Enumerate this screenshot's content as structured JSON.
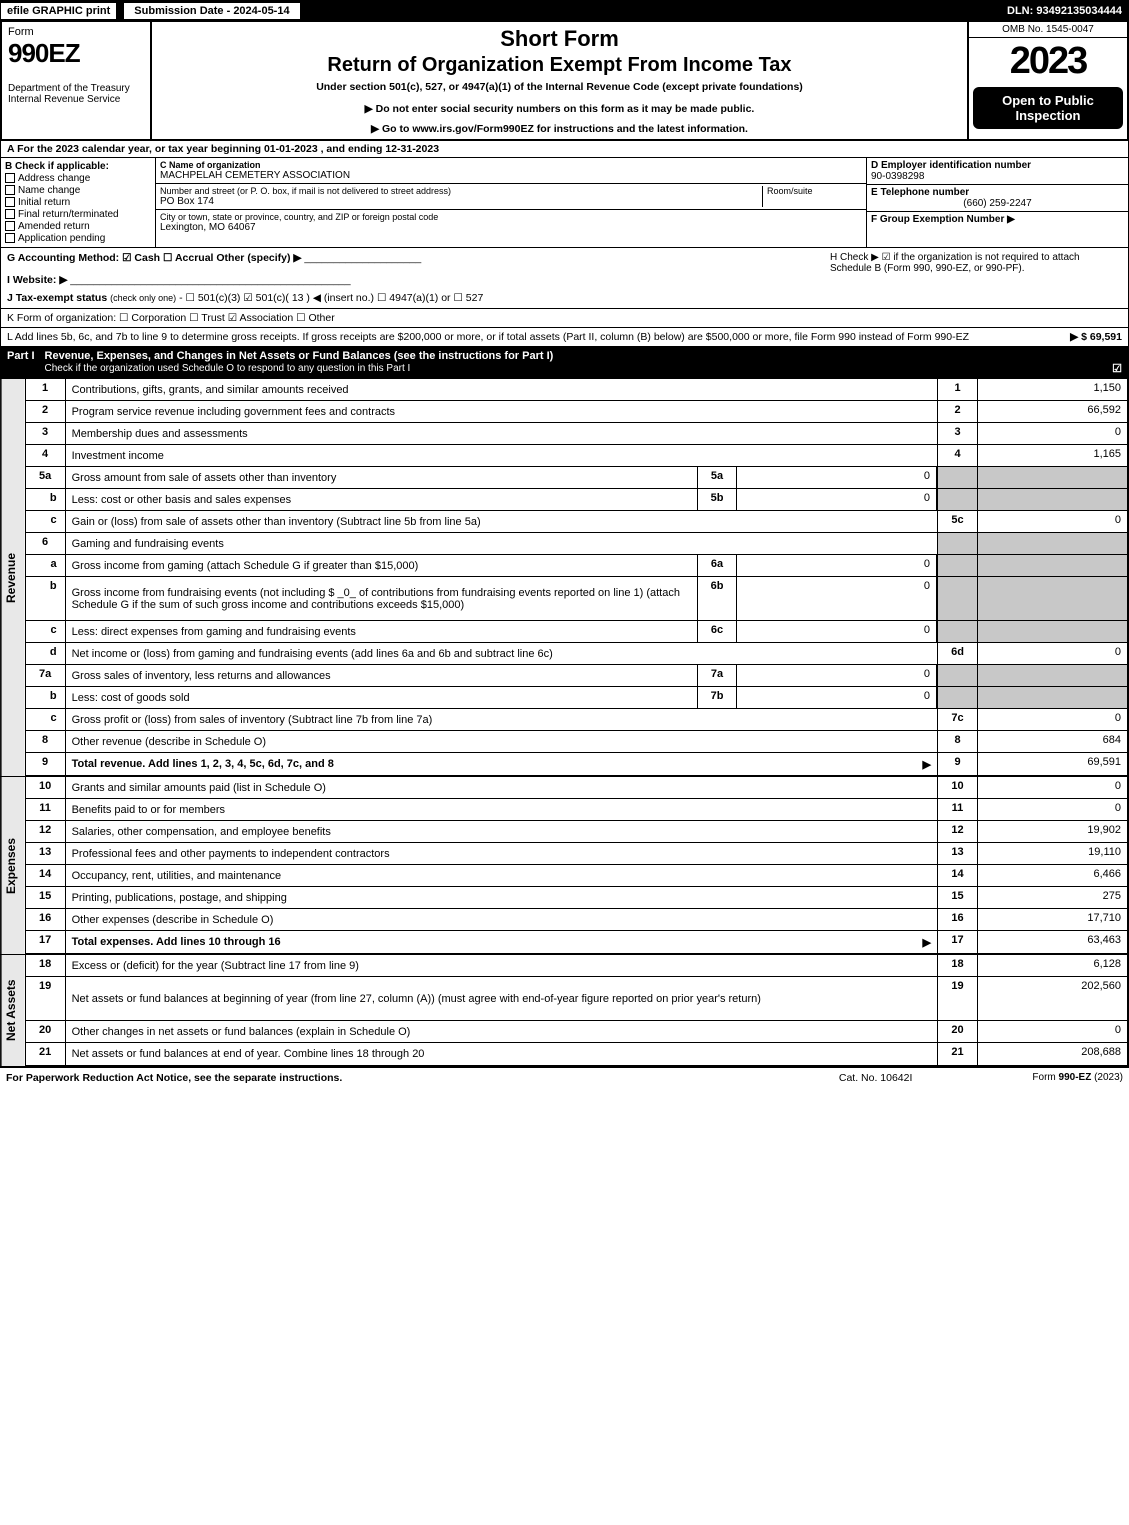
{
  "year": "2023",
  "topbar": {
    "efile": "efile GRAPHIC print",
    "submission": "Submission Date - 2024-05-14",
    "dln": "DLN: 93492135034444"
  },
  "header": {
    "form_label": "Form",
    "form_num": "990EZ",
    "dept": "Department of the Treasury\nInternal Revenue Service",
    "short": "Short Form",
    "title": "Return of Organization Exempt From Income Tax",
    "under": "Under section 501(c), 527, or 4947(a)(1) of the Internal Revenue Code (except private foundations)",
    "note1": "▶ Do not enter social security numbers on this form as it may be made public.",
    "note2": "▶ Go to www.irs.gov/Form990EZ for instructions and the latest information.",
    "omb": "OMB No. 1545-0047",
    "open": "Open to Public Inspection"
  },
  "A": "A  For the 2023 calendar year, or tax year beginning 01-01-2023 , and ending 12-31-2023",
  "B": {
    "label": "B  Check if applicable:",
    "opts": [
      "Address change",
      "Name change",
      "Initial return",
      "Final return/terminated",
      "Amended return",
      "Application pending"
    ]
  },
  "C": {
    "label": "C Name of organization",
    "name": "MACHPELAH CEMETERY ASSOCIATION",
    "street_label": "Number and street (or P. O. box, if mail is not delivered to street address)",
    "street": "PO Box 174",
    "room_label": "Room/suite",
    "city_label": "City or town, state or province, country, and ZIP or foreign postal code",
    "city": "Lexington, MO  64067"
  },
  "D": {
    "label": "D Employer identification number",
    "val": "90-0398298"
  },
  "E": {
    "label": "E Telephone number",
    "val": "(660) 259-2247"
  },
  "F": {
    "label": "F Group Exemption Number  ▶",
    "val": ""
  },
  "G": "G Accounting Method:   ☑ Cash   ☐ Accrual   Other (specify) ▶",
  "H": "H   Check ▶  ☑  if the organization is not required to attach Schedule B (Form 990, 990-EZ, or 990-PF).",
  "I": "I Website: ▶",
  "J": "J Tax-exempt status (check only one) - ☐ 501(c)(3)  ☑  501(c)( 13 ) ◀ (insert no.)  ☐ 4947(a)(1) or  ☐ 527",
  "K": "K Form of organization:   ☐ Corporation   ☐ Trust   ☑ Association   ☐ Other",
  "L": {
    "text": "L Add lines 5b, 6c, and 7b to line 9 to determine gross receipts. If gross receipts are $200,000 or more, or if total assets (Part II, column (B) below) are $500,000 or more, file Form 990 instead of Form 990-EZ",
    "val": "▶ $ 69,591"
  },
  "partI": {
    "lbl": "Part I",
    "txt": "Revenue, Expenses, and Changes in Net Assets or Fund Balances (see the instructions for Part I)",
    "sub": "Check if the organization used Schedule O to respond to any question in this Part I"
  },
  "rows": {
    "revenue": [
      {
        "n": "1",
        "d": "Contributions, gifts, grants, and similar amounts received",
        "c": "1",
        "v": "1,150"
      },
      {
        "n": "2",
        "d": "Program service revenue including government fees and contracts",
        "c": "2",
        "v": "66,592"
      },
      {
        "n": "3",
        "d": "Membership dues and assessments",
        "c": "3",
        "v": "0"
      },
      {
        "n": "4",
        "d": "Investment income",
        "c": "4",
        "v": "1,165"
      },
      {
        "n": "5a",
        "d": "Gross amount from sale of assets other than inventory",
        "m": "5a",
        "mv": "0"
      },
      {
        "n": "b",
        "d": "Less: cost or other basis and sales expenses",
        "m": "5b",
        "mv": "0"
      },
      {
        "n": "c",
        "d": "Gain or (loss) from sale of assets other than inventory (Subtract line 5b from line 5a)",
        "c": "5c",
        "v": "0"
      },
      {
        "n": "6",
        "d": "Gaming and fundraising events",
        "noval": true
      },
      {
        "n": "a",
        "d": "Gross income from gaming (attach Schedule G if greater than $15,000)",
        "m": "6a",
        "mv": "0"
      },
      {
        "n": "b",
        "d": "Gross income from fundraising events (not including $ _0_ of contributions from fundraising events reported on line 1) (attach Schedule G if the sum of such gross income and contributions exceeds $15,000)",
        "m": "6b",
        "mv": "0",
        "tall": true
      },
      {
        "n": "c",
        "d": "Less: direct expenses from gaming and fundraising events",
        "m": "6c",
        "mv": "0"
      },
      {
        "n": "d",
        "d": "Net income or (loss) from gaming and fundraising events (add lines 6a and 6b and subtract line 6c)",
        "c": "6d",
        "v": "0"
      },
      {
        "n": "7a",
        "d": "Gross sales of inventory, less returns and allowances",
        "m": "7a",
        "mv": "0"
      },
      {
        "n": "b",
        "d": "Less: cost of goods sold",
        "m": "7b",
        "mv": "0"
      },
      {
        "n": "c",
        "d": "Gross profit or (loss) from sales of inventory (Subtract line 7b from line 7a)",
        "c": "7c",
        "v": "0"
      },
      {
        "n": "8",
        "d": "Other revenue (describe in Schedule O)",
        "c": "8",
        "v": "684"
      },
      {
        "n": "9",
        "d": "Total revenue. Add lines 1, 2, 3, 4, 5c, 6d, 7c, and 8",
        "c": "9",
        "v": "69,591",
        "bold": true,
        "arrow": true
      }
    ],
    "expenses": [
      {
        "n": "10",
        "d": "Grants and similar amounts paid (list in Schedule O)",
        "c": "10",
        "v": "0"
      },
      {
        "n": "11",
        "d": "Benefits paid to or for members",
        "c": "11",
        "v": "0"
      },
      {
        "n": "12",
        "d": "Salaries, other compensation, and employee benefits",
        "c": "12",
        "v": "19,902"
      },
      {
        "n": "13",
        "d": "Professional fees and other payments to independent contractors",
        "c": "13",
        "v": "19,110"
      },
      {
        "n": "14",
        "d": "Occupancy, rent, utilities, and maintenance",
        "c": "14",
        "v": "6,466"
      },
      {
        "n": "15",
        "d": "Printing, publications, postage, and shipping",
        "c": "15",
        "v": "275"
      },
      {
        "n": "16",
        "d": "Other expenses (describe in Schedule O)",
        "c": "16",
        "v": "17,710"
      },
      {
        "n": "17",
        "d": "Total expenses. Add lines 10 through 16",
        "c": "17",
        "v": "63,463",
        "bold": true,
        "arrow": true
      }
    ],
    "netassets": [
      {
        "n": "18",
        "d": "Excess or (deficit) for the year (Subtract line 17 from line 9)",
        "c": "18",
        "v": "6,128"
      },
      {
        "n": "19",
        "d": "Net assets or fund balances at beginning of year (from line 27, column (A)) (must agree with end-of-year figure reported on prior year's return)",
        "c": "19",
        "v": "202,560",
        "tall": true
      },
      {
        "n": "20",
        "d": "Other changes in net assets or fund balances (explain in Schedule O)",
        "c": "20",
        "v": "0"
      },
      {
        "n": "21",
        "d": "Net assets or fund balances at end of year. Combine lines 18 through 20",
        "c": "21",
        "v": "208,688"
      }
    ]
  },
  "side_labels": {
    "rev": "Revenue",
    "exp": "Expenses",
    "net": "Net Assets"
  },
  "footer": {
    "l": "For Paperwork Reduction Act Notice, see the separate instructions.",
    "c": "Cat. No. 10642I",
    "r": "Form 990-EZ (2023)"
  }
}
